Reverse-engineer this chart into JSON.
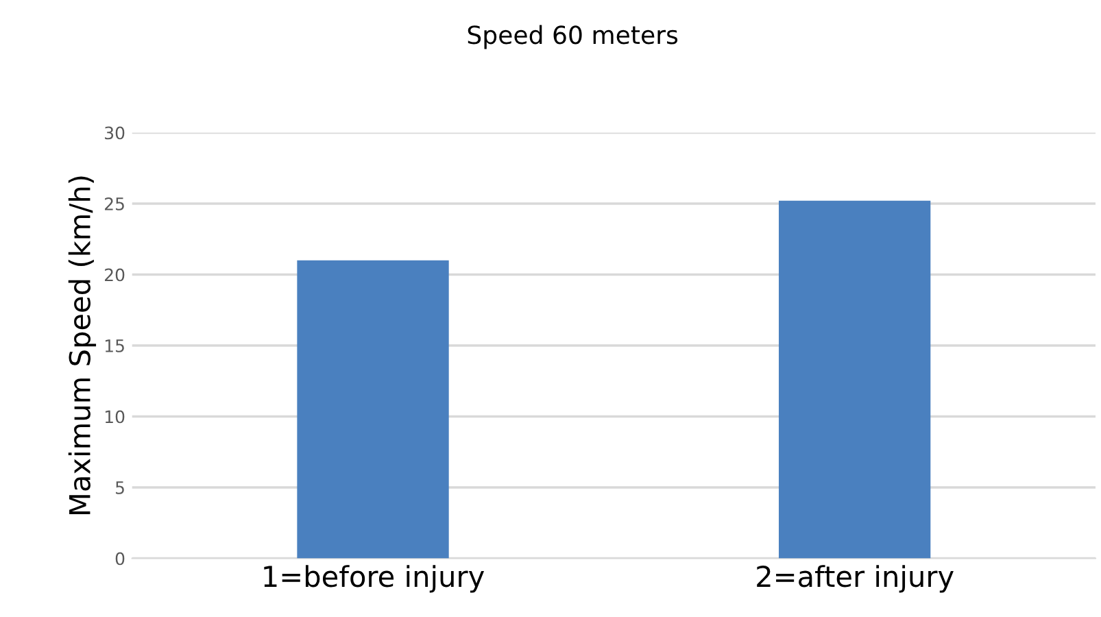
{
  "chart_data": {
    "type": "bar",
    "title": "Speed 60 meters",
    "ylabel": "Maximum Speed (km/h)",
    "categories": [
      "1=before injury",
      "2=after injury"
    ],
    "values": [
      21,
      25.2
    ],
    "color": "#4a80bf",
    "ylim": [
      0,
      30
    ],
    "yticks": [
      0,
      5,
      10,
      15,
      20,
      25,
      30
    ],
    "grid": "y"
  }
}
